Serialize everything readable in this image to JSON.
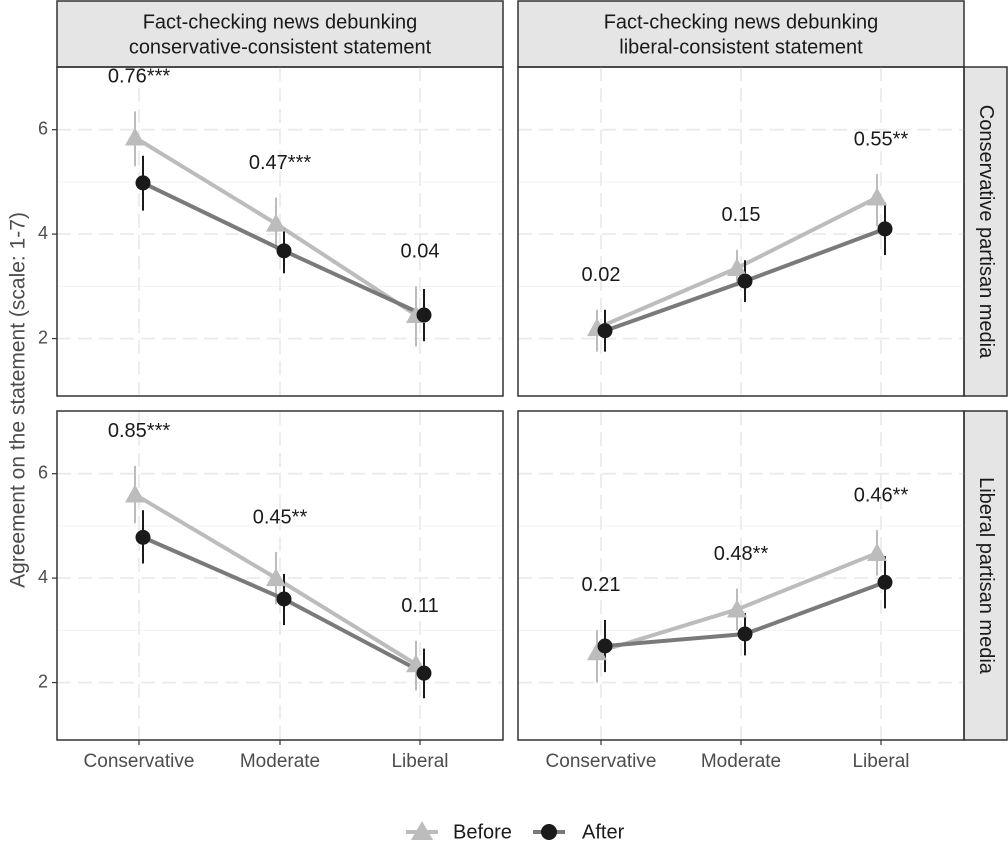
{
  "chart_data": {
    "type": "line",
    "ylabel": "Agreement on the statement (scale: 1-7)",
    "xlabel": "",
    "categories": [
      "Conservative",
      "Moderate",
      "Liberal"
    ],
    "y_ticks": [
      2,
      4,
      6
    ],
    "ylim": [
      0.9,
      7.2
    ],
    "grid": true,
    "legend_position": "bottom",
    "columns": [
      "Fact-checking news debunking\nconservative-consistent statement",
      "Fact-checking news debunking\nliberal-consistent statement"
    ],
    "rows": [
      "Conservative partisan media",
      "Liberal partisan media"
    ],
    "series_meta": [
      {
        "name": "Before",
        "color": "#bcbcbc",
        "marker": "triangle"
      },
      {
        "name": "After",
        "color": "#7a7a7a",
        "point_color": "#1a1a1a",
        "marker": "circle"
      }
    ],
    "panels": [
      {
        "row": 0,
        "col": 0,
        "before": [
          5.85,
          4.2,
          2.45
        ],
        "before_ci": [
          [
            5.3,
            6.35
          ],
          [
            3.7,
            4.7
          ],
          [
            1.85,
            3.0
          ]
        ],
        "after": [
          4.98,
          3.68,
          2.45
        ],
        "after_ci": [
          [
            4.45,
            5.5
          ],
          [
            3.25,
            4.1
          ],
          [
            1.95,
            2.95
          ]
        ],
        "labels": [
          "0.76***",
          "0.47***",
          "0.04"
        ]
      },
      {
        "row": 0,
        "col": 1,
        "before": [
          2.2,
          3.35,
          4.7
        ],
        "before_ci": [
          [
            1.75,
            2.55
          ],
          [
            3.0,
            3.7
          ],
          [
            4.15,
            5.15
          ]
        ],
        "after": [
          2.15,
          3.1,
          4.1
        ],
        "after_ci": [
          [
            1.75,
            2.55
          ],
          [
            2.7,
            3.5
          ],
          [
            3.6,
            4.6
          ]
        ],
        "labels": [
          "0.02",
          "0.15",
          "0.55**"
        ]
      },
      {
        "row": 1,
        "col": 0,
        "before": [
          5.6,
          4.0,
          2.35
        ],
        "before_ci": [
          [
            5.05,
            6.15
          ],
          [
            3.5,
            4.5
          ],
          [
            1.85,
            2.8
          ]
        ],
        "after": [
          4.78,
          3.6,
          2.18
        ],
        "after_ci": [
          [
            4.28,
            5.3
          ],
          [
            3.1,
            4.08
          ],
          [
            1.7,
            2.65
          ]
        ],
        "labels": [
          "0.85***",
          "0.45**",
          "0.11"
        ]
      },
      {
        "row": 1,
        "col": 1,
        "before": [
          2.58,
          3.4,
          4.48
        ],
        "before_ci": [
          [
            2.0,
            3.0
          ],
          [
            3.0,
            3.8
          ],
          [
            4.05,
            4.92
          ]
        ],
        "after": [
          2.7,
          2.93,
          3.92
        ],
        "after_ci": [
          [
            2.2,
            3.2
          ],
          [
            2.52,
            3.33
          ],
          [
            3.42,
            4.42
          ]
        ],
        "labels": [
          "0.21",
          "0.48**",
          "0.46**"
        ]
      }
    ]
  },
  "legend": {
    "before_label": "Before",
    "after_label": "After"
  },
  "colors": {
    "strip_fill": "#e5e5e5",
    "strip_border": "#333333",
    "panel_border": "#333333",
    "grid": "#ebebeb",
    "before": "#bcbcbc",
    "after_line": "#7a7a7a",
    "after_point": "#1a1a1a",
    "text": "#1a1a1a",
    "axis_text": "#4d4d4d"
  }
}
